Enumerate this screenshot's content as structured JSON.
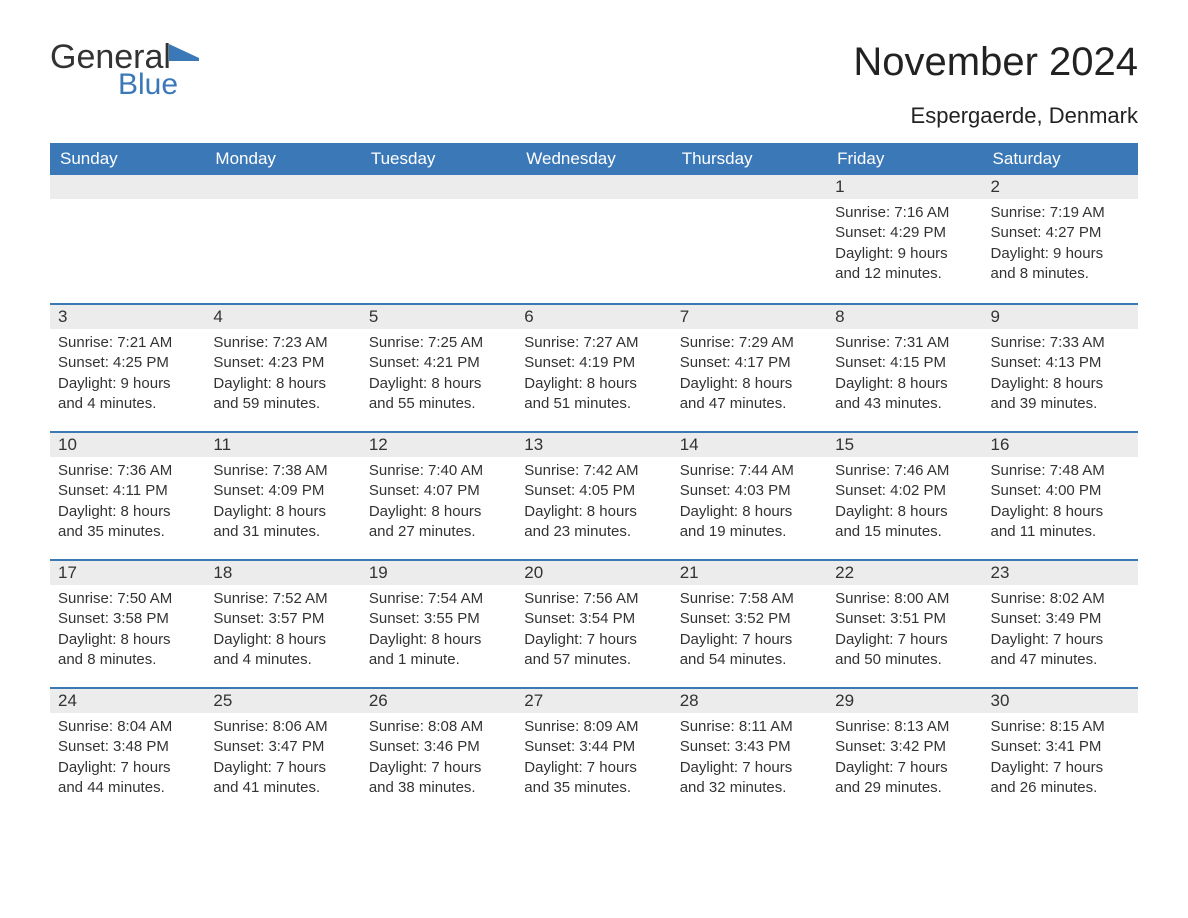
{
  "logo": {
    "general": "General",
    "blue": "Blue",
    "icon_color": "#3b78b8"
  },
  "title": "November 2024",
  "subtitle": "Espergaerde, Denmark",
  "colors": {
    "header_bg": "#3b78b8",
    "header_text": "#ffffff",
    "daynum_bg": "#ececec",
    "border": "#3b78b8",
    "text": "#333333",
    "background": "#ffffff"
  },
  "font": {
    "family": "Arial",
    "title_size": 40,
    "subtitle_size": 22,
    "header_size": 17,
    "body_size": 15
  },
  "day_headers": [
    "Sunday",
    "Monday",
    "Tuesday",
    "Wednesday",
    "Thursday",
    "Friday",
    "Saturday"
  ],
  "weeks": [
    [
      {
        "empty": true
      },
      {
        "empty": true
      },
      {
        "empty": true
      },
      {
        "empty": true
      },
      {
        "empty": true
      },
      {
        "day": "1",
        "sunrise": "Sunrise: 7:16 AM",
        "sunset": "Sunset: 4:29 PM",
        "daylight1": "Daylight: 9 hours",
        "daylight2": "and 12 minutes."
      },
      {
        "day": "2",
        "sunrise": "Sunrise: 7:19 AM",
        "sunset": "Sunset: 4:27 PM",
        "daylight1": "Daylight: 9 hours",
        "daylight2": "and 8 minutes."
      }
    ],
    [
      {
        "day": "3",
        "sunrise": "Sunrise: 7:21 AM",
        "sunset": "Sunset: 4:25 PM",
        "daylight1": "Daylight: 9 hours",
        "daylight2": "and 4 minutes."
      },
      {
        "day": "4",
        "sunrise": "Sunrise: 7:23 AM",
        "sunset": "Sunset: 4:23 PM",
        "daylight1": "Daylight: 8 hours",
        "daylight2": "and 59 minutes."
      },
      {
        "day": "5",
        "sunrise": "Sunrise: 7:25 AM",
        "sunset": "Sunset: 4:21 PM",
        "daylight1": "Daylight: 8 hours",
        "daylight2": "and 55 minutes."
      },
      {
        "day": "6",
        "sunrise": "Sunrise: 7:27 AM",
        "sunset": "Sunset: 4:19 PM",
        "daylight1": "Daylight: 8 hours",
        "daylight2": "and 51 minutes."
      },
      {
        "day": "7",
        "sunrise": "Sunrise: 7:29 AM",
        "sunset": "Sunset: 4:17 PM",
        "daylight1": "Daylight: 8 hours",
        "daylight2": "and 47 minutes."
      },
      {
        "day": "8",
        "sunrise": "Sunrise: 7:31 AM",
        "sunset": "Sunset: 4:15 PM",
        "daylight1": "Daylight: 8 hours",
        "daylight2": "and 43 minutes."
      },
      {
        "day": "9",
        "sunrise": "Sunrise: 7:33 AM",
        "sunset": "Sunset: 4:13 PM",
        "daylight1": "Daylight: 8 hours",
        "daylight2": "and 39 minutes."
      }
    ],
    [
      {
        "day": "10",
        "sunrise": "Sunrise: 7:36 AM",
        "sunset": "Sunset: 4:11 PM",
        "daylight1": "Daylight: 8 hours",
        "daylight2": "and 35 minutes."
      },
      {
        "day": "11",
        "sunrise": "Sunrise: 7:38 AM",
        "sunset": "Sunset: 4:09 PM",
        "daylight1": "Daylight: 8 hours",
        "daylight2": "and 31 minutes."
      },
      {
        "day": "12",
        "sunrise": "Sunrise: 7:40 AM",
        "sunset": "Sunset: 4:07 PM",
        "daylight1": "Daylight: 8 hours",
        "daylight2": "and 27 minutes."
      },
      {
        "day": "13",
        "sunrise": "Sunrise: 7:42 AM",
        "sunset": "Sunset: 4:05 PM",
        "daylight1": "Daylight: 8 hours",
        "daylight2": "and 23 minutes."
      },
      {
        "day": "14",
        "sunrise": "Sunrise: 7:44 AM",
        "sunset": "Sunset: 4:03 PM",
        "daylight1": "Daylight: 8 hours",
        "daylight2": "and 19 minutes."
      },
      {
        "day": "15",
        "sunrise": "Sunrise: 7:46 AM",
        "sunset": "Sunset: 4:02 PM",
        "daylight1": "Daylight: 8 hours",
        "daylight2": "and 15 minutes."
      },
      {
        "day": "16",
        "sunrise": "Sunrise: 7:48 AM",
        "sunset": "Sunset: 4:00 PM",
        "daylight1": "Daylight: 8 hours",
        "daylight2": "and 11 minutes."
      }
    ],
    [
      {
        "day": "17",
        "sunrise": "Sunrise: 7:50 AM",
        "sunset": "Sunset: 3:58 PM",
        "daylight1": "Daylight: 8 hours",
        "daylight2": "and 8 minutes."
      },
      {
        "day": "18",
        "sunrise": "Sunrise: 7:52 AM",
        "sunset": "Sunset: 3:57 PM",
        "daylight1": "Daylight: 8 hours",
        "daylight2": "and 4 minutes."
      },
      {
        "day": "19",
        "sunrise": "Sunrise: 7:54 AM",
        "sunset": "Sunset: 3:55 PM",
        "daylight1": "Daylight: 8 hours",
        "daylight2": "and 1 minute."
      },
      {
        "day": "20",
        "sunrise": "Sunrise: 7:56 AM",
        "sunset": "Sunset: 3:54 PM",
        "daylight1": "Daylight: 7 hours",
        "daylight2": "and 57 minutes."
      },
      {
        "day": "21",
        "sunrise": "Sunrise: 7:58 AM",
        "sunset": "Sunset: 3:52 PM",
        "daylight1": "Daylight: 7 hours",
        "daylight2": "and 54 minutes."
      },
      {
        "day": "22",
        "sunrise": "Sunrise: 8:00 AM",
        "sunset": "Sunset: 3:51 PM",
        "daylight1": "Daylight: 7 hours",
        "daylight2": "and 50 minutes."
      },
      {
        "day": "23",
        "sunrise": "Sunrise: 8:02 AM",
        "sunset": "Sunset: 3:49 PM",
        "daylight1": "Daylight: 7 hours",
        "daylight2": "and 47 minutes."
      }
    ],
    [
      {
        "day": "24",
        "sunrise": "Sunrise: 8:04 AM",
        "sunset": "Sunset: 3:48 PM",
        "daylight1": "Daylight: 7 hours",
        "daylight2": "and 44 minutes."
      },
      {
        "day": "25",
        "sunrise": "Sunrise: 8:06 AM",
        "sunset": "Sunset: 3:47 PM",
        "daylight1": "Daylight: 7 hours",
        "daylight2": "and 41 minutes."
      },
      {
        "day": "26",
        "sunrise": "Sunrise: 8:08 AM",
        "sunset": "Sunset: 3:46 PM",
        "daylight1": "Daylight: 7 hours",
        "daylight2": "and 38 minutes."
      },
      {
        "day": "27",
        "sunrise": "Sunrise: 8:09 AM",
        "sunset": "Sunset: 3:44 PM",
        "daylight1": "Daylight: 7 hours",
        "daylight2": "and 35 minutes."
      },
      {
        "day": "28",
        "sunrise": "Sunrise: 8:11 AM",
        "sunset": "Sunset: 3:43 PM",
        "daylight1": "Daylight: 7 hours",
        "daylight2": "and 32 minutes."
      },
      {
        "day": "29",
        "sunrise": "Sunrise: 8:13 AM",
        "sunset": "Sunset: 3:42 PM",
        "daylight1": "Daylight: 7 hours",
        "daylight2": "and 29 minutes."
      },
      {
        "day": "30",
        "sunrise": "Sunrise: 8:15 AM",
        "sunset": "Sunset: 3:41 PM",
        "daylight1": "Daylight: 7 hours",
        "daylight2": "and 26 minutes."
      }
    ]
  ]
}
